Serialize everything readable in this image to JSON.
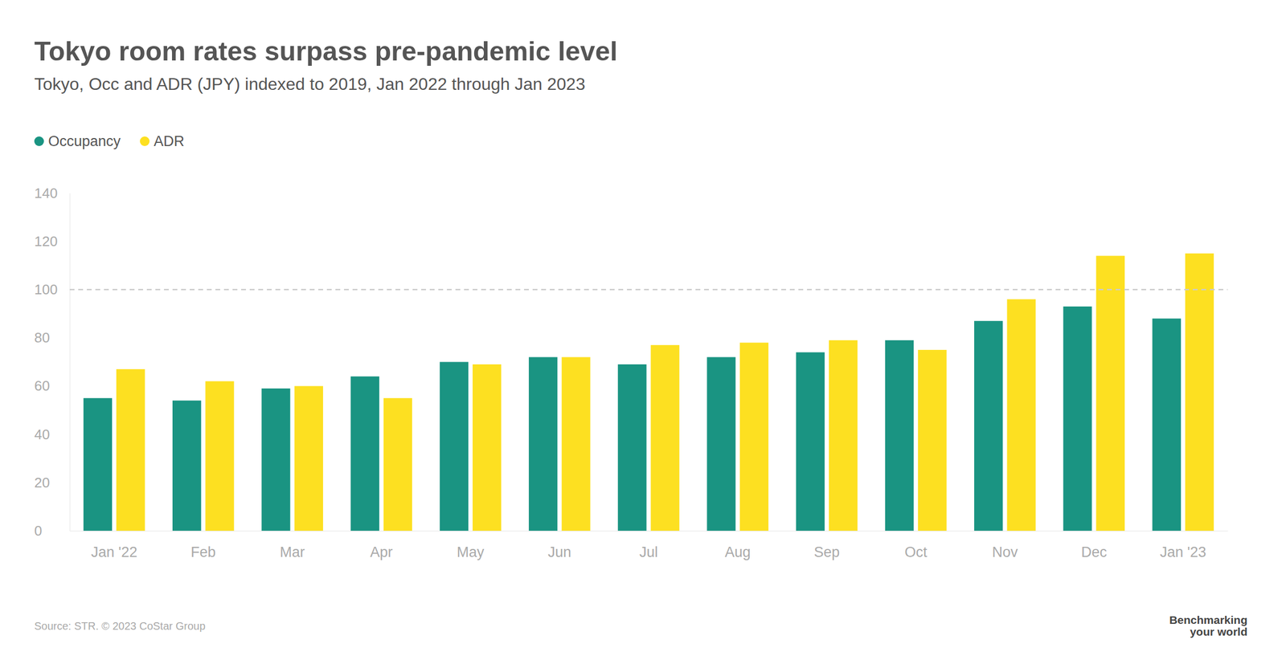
{
  "chart_data": {
    "type": "bar",
    "title": "Tokyo room rates surpass pre-pandemic level",
    "subtitle": "Tokyo, Occ and ADR (JPY) indexed to 2019, Jan 2022 through Jan 2023",
    "categories": [
      "Jan '22",
      "Feb",
      "Mar",
      "Apr",
      "May",
      "Jun",
      "Jul",
      "Aug",
      "Sep",
      "Oct",
      "Nov",
      "Dec",
      "Jan '23"
    ],
    "series": [
      {
        "name": "Occupancy",
        "color": "#1a9482",
        "values": [
          55,
          54,
          59,
          64,
          70,
          72,
          69,
          72,
          74,
          79,
          87,
          93,
          88
        ]
      },
      {
        "name": "ADR",
        "color": "#fde021",
        "values": [
          67,
          62,
          60,
          55,
          69,
          72,
          77,
          78,
          79,
          75,
          96,
          114,
          115
        ]
      }
    ],
    "ylim": [
      0,
      140
    ],
    "yticks": [
      0,
      20,
      40,
      60,
      80,
      100,
      120,
      140
    ],
    "reference_line": 100,
    "grid": false,
    "legend": "top-left",
    "source": "Source: STR. © 2023 CoStar Group",
    "brand": [
      "Benchmarking",
      "your world"
    ]
  }
}
